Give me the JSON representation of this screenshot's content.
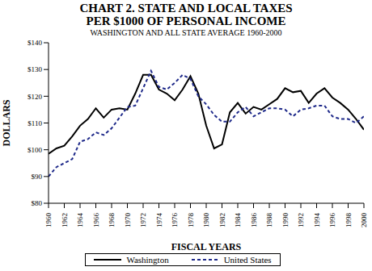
{
  "chart_data": {
    "type": "line",
    "title": "CHART 2. STATE AND LOCAL TAXES\nPER $1000 OF PERSONAL INCOME",
    "subtitle": "WASHINGTON AND ALL STATE AVERAGE 1960-2000",
    "x_label": "FISCAL YEARS",
    "y_label": "DOLLARS",
    "x": [
      1960,
      1961,
      1962,
      1963,
      1964,
      1965,
      1966,
      1967,
      1968,
      1969,
      1970,
      1971,
      1972,
      1973,
      1974,
      1975,
      1976,
      1977,
      1978,
      1979,
      1980,
      1981,
      1982,
      1983,
      1984,
      1985,
      1986,
      1987,
      1988,
      1989,
      1990,
      1991,
      1992,
      1993,
      1994,
      1995,
      1996,
      1997,
      1998,
      1999,
      2000
    ],
    "series": [
      {
        "name": "Washington",
        "color": "#000000",
        "line_style": "solid",
        "values": [
          98.5,
          100.5,
          101.5,
          105,
          109,
          111.5,
          115.5,
          112,
          115,
          115.5,
          115,
          121,
          128,
          128,
          122.5,
          121,
          118.5,
          122.5,
          127.5,
          121,
          109,
          100.5,
          102,
          114,
          117.5,
          113.5,
          116,
          115,
          117,
          119,
          123,
          121.5,
          122,
          117.5,
          121,
          123,
          119.5,
          117.5,
          115,
          111.5,
          107.5
        ]
      },
      {
        "name": "United States",
        "color": "#1f2a8a",
        "line_style": "dashed",
        "values": [
          90,
          93.5,
          95,
          96.5,
          103,
          104,
          106.5,
          105.5,
          108,
          112,
          116,
          116.5,
          123,
          129.5,
          123.5,
          122.5,
          125,
          128,
          126.5,
          120,
          117,
          113,
          110.5,
          110.5,
          114,
          116,
          112.5,
          114,
          115.5,
          115.5,
          115,
          112.5,
          115,
          115.5,
          116.5,
          116.5,
          112.5,
          111.5,
          111.5,
          110,
          112.5
        ]
      }
    ],
    "xlim": [
      1960,
      2000
    ],
    "xticks": [
      1960,
      1962,
      1964,
      1966,
      1968,
      1970,
      1972,
      1974,
      1976,
      1978,
      1980,
      1982,
      1984,
      1986,
      1988,
      1990,
      1992,
      1994,
      1996,
      1998,
      2000
    ],
    "ylim": [
      80,
      140
    ],
    "yticks": [
      {
        "value": 80,
        "label": "$80"
      },
      {
        "value": 90,
        "label": "$90"
      },
      {
        "value": 100,
        "label": "$100"
      },
      {
        "value": 110,
        "label": "$110"
      },
      {
        "value": 120,
        "label": "$120"
      },
      {
        "value": 130,
        "label": "$130"
      },
      {
        "value": 140,
        "label": "$140"
      }
    ],
    "grid": false,
    "legend": "bottom"
  }
}
